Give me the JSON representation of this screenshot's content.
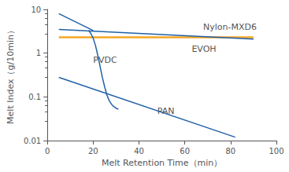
{
  "chart_data": {
    "type": "line",
    "xlabel": "Melt Retention Time（min）",
    "ylabel": "Melt Index（g/10min）",
    "log": "y",
    "xlim": [
      0,
      100
    ],
    "ylim": [
      0.01,
      10
    ],
    "xticks": [
      0,
      20,
      40,
      60,
      80,
      100
    ],
    "yticks": [
      0.01,
      0.1,
      1,
      10
    ],
    "grid": false,
    "series": [
      {
        "color": "#f5a623",
        "x": [
          5,
          90
        ],
        "values": [
          2.3,
          2.3
        ]
      },
      {
        "color": "#2060a8",
        "x": [
          5,
          90
        ],
        "values": [
          3.5,
          2.1
        ]
      },
      {
        "color": "#2060a8",
        "x": [
          5,
          20
        ],
        "values": [
          8.0,
          3.3
        ]
      },
      {
        "color": "#2060a8",
        "x": [
          18,
          19,
          20,
          21,
          22,
          23,
          24,
          25,
          26,
          27,
          28,
          29,
          30,
          31
        ],
        "values": [
          3.3,
          2.8,
          2.2,
          1.5,
          0.9,
          0.5,
          0.28,
          0.17,
          0.11,
          0.082,
          0.068,
          0.06,
          0.055,
          0.052
        ]
      },
      {
        "color": "#2060a8",
        "x": [
          5,
          82
        ],
        "values": [
          0.28,
          0.012
        ]
      }
    ],
    "annotations": [
      {
        "text": "Nylon-MXD6",
        "x": 68,
        "y": 3.2
      },
      {
        "text": "EVOH",
        "x": 63,
        "y": 1.55
      },
      {
        "text": "PVDC",
        "x": 20,
        "y": 0.55
      },
      {
        "text": "PAN",
        "x": 48,
        "y": 0.038
      }
    ]
  }
}
